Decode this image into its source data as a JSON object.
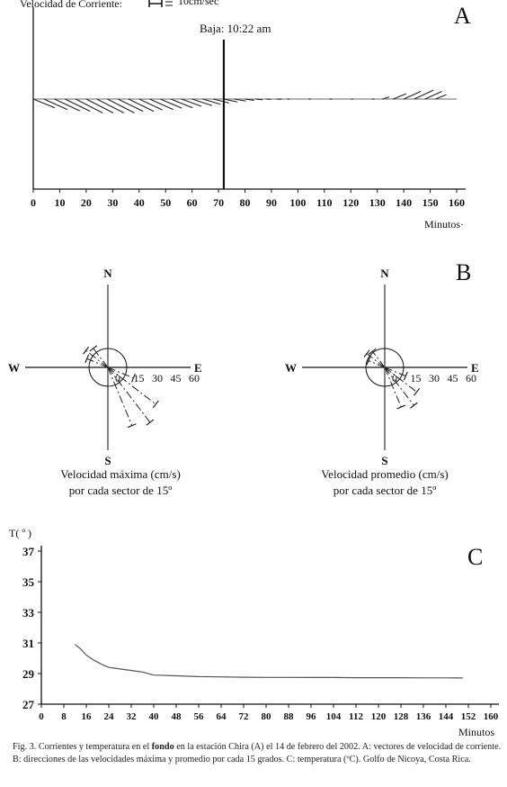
{
  "panel_a": {
    "legend_label": "Velocidad de Corriente:",
    "legend_value": "10cm/sec",
    "panel_letter": "A",
    "event_label": "Baja: 10:22 am",
    "x_label": "Minutos·",
    "tick_labels": [
      "0",
      "10",
      "20",
      "30",
      "40",
      "50",
      "60",
      "70",
      "80",
      "90",
      "100",
      "110",
      "120",
      "130",
      "140",
      "150",
      "160"
    ]
  },
  "panel_b": {
    "panel_letter": "B",
    "left": {
      "north": "N",
      "south": "S",
      "east": "E",
      "west": "W",
      "ring_labels": [
        "0",
        "15",
        "30",
        "45",
        "60"
      ],
      "caption_line1": "Velocidad máxima (cm/s)",
      "caption_line2": "por cada sector de 15º"
    },
    "right": {
      "north": "N",
      "south": "S",
      "east": "E",
      "west": "W",
      "ring_labels": [
        "0",
        "15",
        "30",
        "45",
        "60"
      ],
      "caption_line1": "Velocidad promedio (cm/s)",
      "caption_line2": "por cada sector de 15º"
    }
  },
  "panel_c": {
    "panel_letter": "C",
    "y_title": "T( º )",
    "x_label": "Minutos",
    "y_tick_labels": [
      "37",
      "35",
      "33",
      "31",
      "29",
      "27"
    ],
    "x_tick_labels": [
      "0",
      "8",
      "16",
      "24",
      "32",
      "40",
      "48",
      "56",
      "64",
      "72",
      "80",
      "88",
      "96",
      "104",
      "112",
      "120",
      "128",
      "136",
      "144",
      "152",
      "160"
    ]
  },
  "caption": {
    "part1": "Fig. 3. Corrientes y temperatura en el ",
    "bold": "fondo",
    "part2": " en la estación Chira (A) el 14 de febrero del 2002. A: vectores de velocidad de corriente. B: direcciones de las velocidades máxima y promedio por cada 15 grados. C: temperatura (ºC). Golfo de Nicoya, Costa Rica."
  },
  "chart_data": [
    {
      "type": "line",
      "panel": "A",
      "xlabel": "Minutos·",
      "xlim": [
        0,
        160
      ],
      "event_marker_x": 72,
      "vectors": [
        {
          "t": 0,
          "dir_deg": 112,
          "speed": 10
        },
        {
          "t": 4,
          "dir_deg": 114,
          "speed": 11
        },
        {
          "t": 8,
          "dir_deg": 115,
          "speed": 12
        },
        {
          "t": 12,
          "dir_deg": 116,
          "speed": 12
        },
        {
          "t": 16,
          "dir_deg": 117,
          "speed": 13
        },
        {
          "t": 20,
          "dir_deg": 117,
          "speed": 13
        },
        {
          "t": 24,
          "dir_deg": 117,
          "speed": 13
        },
        {
          "t": 28,
          "dir_deg": 117,
          "speed": 13
        },
        {
          "t": 32,
          "dir_deg": 116,
          "speed": 12
        },
        {
          "t": 36,
          "dir_deg": 116,
          "speed": 12
        },
        {
          "t": 40,
          "dir_deg": 115,
          "speed": 11
        },
        {
          "t": 44,
          "dir_deg": 114,
          "speed": 11
        },
        {
          "t": 48,
          "dir_deg": 113,
          "speed": 10
        },
        {
          "t": 52,
          "dir_deg": 112,
          "speed": 10
        },
        {
          "t": 56,
          "dir_deg": 110,
          "speed": 9
        },
        {
          "t": 60,
          "dir_deg": 108,
          "speed": 9
        },
        {
          "t": 64,
          "dir_deg": 106,
          "speed": 8
        },
        {
          "t": 68,
          "dir_deg": 104,
          "speed": 7
        },
        {
          "t": 72,
          "dir_deg": 102,
          "speed": 6
        },
        {
          "t": 76,
          "dir_deg": 100,
          "speed": 5
        },
        {
          "t": 80,
          "dir_deg": 98,
          "speed": 4
        },
        {
          "t": 84,
          "dir_deg": 96,
          "speed": 3
        },
        {
          "t": 88,
          "dir_deg": 94,
          "speed": 2
        },
        {
          "t": 92,
          "dir_deg": 92,
          "speed": 2
        },
        {
          "t": 96,
          "dir_deg": 92,
          "speed": 1
        },
        {
          "t": 104,
          "dir_deg": 92,
          "speed": 1
        },
        {
          "t": 112,
          "dir_deg": 92,
          "speed": 1
        },
        {
          "t": 120,
          "dir_deg": 92,
          "speed": 1
        },
        {
          "t": 128,
          "dir_deg": 88,
          "speed": 1
        },
        {
          "t": 132,
          "dir_deg": 72,
          "speed": 3
        },
        {
          "t": 136,
          "dir_deg": 68,
          "speed": 6
        },
        {
          "t": 140,
          "dir_deg": 66,
          "speed": 8
        },
        {
          "t": 144,
          "dir_deg": 65,
          "speed": 9
        },
        {
          "t": 148,
          "dir_deg": 66,
          "speed": 8
        },
        {
          "t": 152,
          "dir_deg": 68,
          "speed": 5
        }
      ]
    },
    {
      "type": "scatter",
      "panel": "B-left",
      "rlim": [
        0,
        60
      ],
      "ring_ticks": [
        0,
        15,
        30,
        45,
        60
      ],
      "spokes": [
        {
          "dir_deg": 112.5,
          "speed": 22
        },
        {
          "dir_deg": 127.5,
          "speed": 48
        },
        {
          "dir_deg": 142.5,
          "speed": 55
        },
        {
          "dir_deg": 157.5,
          "speed": 50
        },
        {
          "dir_deg": 292.5,
          "speed": 18
        },
        {
          "dir_deg": 307.5,
          "speed": 22
        },
        {
          "dir_deg": 322.5,
          "speed": 19
        }
      ]
    },
    {
      "type": "scatter",
      "panel": "B-right",
      "rlim": [
        0,
        60
      ],
      "ring_ticks": [
        0,
        15,
        30,
        45,
        60
      ],
      "spokes": [
        {
          "dir_deg": 112.5,
          "speed": 18
        },
        {
          "dir_deg": 127.5,
          "speed": 32
        },
        {
          "dir_deg": 142.5,
          "speed": 38
        },
        {
          "dir_deg": 157.5,
          "speed": 34
        },
        {
          "dir_deg": 292.5,
          "speed": 14
        },
        {
          "dir_deg": 307.5,
          "speed": 18
        },
        {
          "dir_deg": 322.5,
          "speed": 16
        }
      ]
    },
    {
      "type": "line",
      "panel": "C",
      "xlabel": "Minutos",
      "ylabel": "T( º )",
      "xlim": [
        0,
        160
      ],
      "ylim": [
        27,
        37
      ],
      "x": [
        12,
        14,
        16,
        18,
        20,
        22,
        24,
        28,
        32,
        36,
        40,
        48,
        56,
        64,
        72,
        80,
        88,
        96,
        104,
        112,
        120,
        128,
        136,
        144,
        150
      ],
      "y": [
        30.9,
        30.6,
        30.2,
        29.95,
        29.75,
        29.55,
        29.4,
        29.3,
        29.2,
        29.1,
        28.9,
        28.85,
        28.8,
        28.78,
        28.76,
        28.75,
        28.75,
        28.74,
        28.74,
        28.73,
        28.73,
        28.73,
        28.72,
        28.72,
        28.71
      ]
    }
  ]
}
